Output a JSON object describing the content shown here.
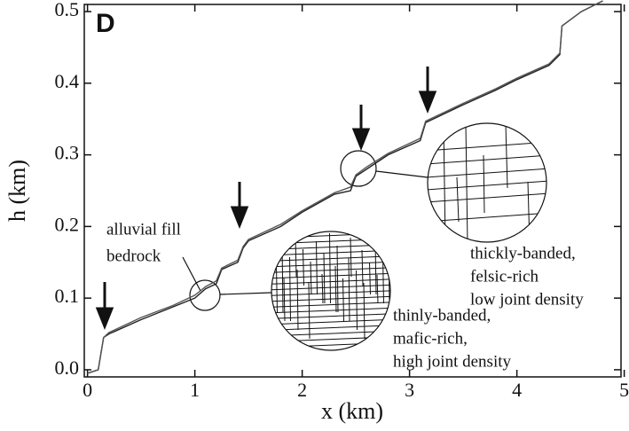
{
  "chart_data": {
    "type": "line",
    "panel_label": "D",
    "xlabel": "x (km)",
    "ylabel": "h (km)",
    "x": [
      0,
      0.1,
      0.15,
      0.2,
      0.5,
      0.8,
      1.0,
      1.1,
      1.2,
      1.25,
      1.4,
      1.45,
      1.5,
      1.8,
      2.0,
      2.3,
      2.45,
      2.5,
      2.6,
      2.8,
      3.1,
      3.15,
      3.5,
      3.8,
      4.0,
      4.3,
      4.4,
      4.42,
      4.6,
      4.8
    ],
    "series": [
      {
        "color": "#222",
        "values": [
          -0.005,
          0,
          0.045,
          0.05,
          0.07,
          0.088,
          0.1,
          0.113,
          0.12,
          0.14,
          0.15,
          0.17,
          0.18,
          0.2,
          0.22,
          0.245,
          0.25,
          0.27,
          0.28,
          0.3,
          0.32,
          0.345,
          0.37,
          0.39,
          0.405,
          0.425,
          0.44,
          0.48,
          0.5,
          0.515
        ]
      },
      {
        "color": "#555",
        "values": [
          -0.005,
          0,
          0.045,
          0.052,
          0.073,
          0.09,
          0.104,
          0.116,
          0.124,
          0.142,
          0.153,
          0.172,
          0.182,
          0.203,
          0.222,
          0.247,
          0.255,
          0.272,
          0.283,
          0.302,
          0.323,
          0.347,
          0.372,
          0.392,
          0.407,
          0.427,
          0.442,
          0.48,
          0.5,
          0.515
        ]
      }
    ],
    "xlim": [
      -0.03,
      4.97
    ],
    "ylim": [
      -0.01,
      0.51
    ],
    "xticks": [
      0,
      1,
      2,
      3,
      4,
      5
    ],
    "yticks": [
      {
        "value": 0,
        "label": "0.0"
      },
      0.1,
      0.2,
      0.3,
      0.4,
      0.5
    ],
    "annotations": [
      "alluvial fill",
      "bedrock",
      "thickly-banded,",
      "felsic-rich",
      "low joint density",
      "thinly-banded,",
      "mafic-rich,",
      "high joint density"
    ]
  }
}
